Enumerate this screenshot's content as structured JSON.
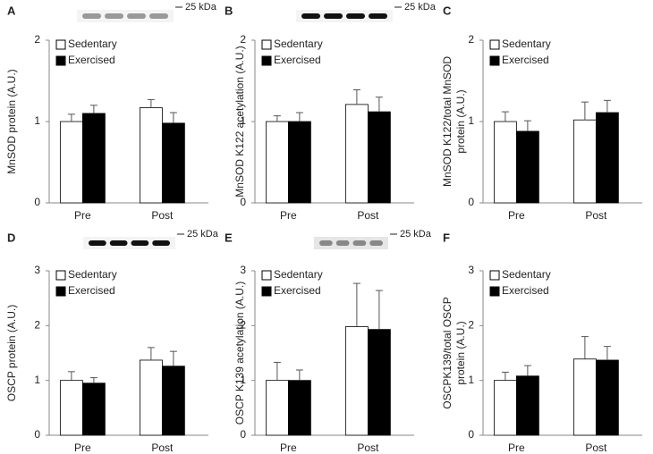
{
  "chart_data": [
    {
      "type": "bar",
      "panel": "A",
      "blot_label": "25 kDa",
      "y_label": "MnSOD protein (A.U.)",
      "categories": [
        "Pre",
        "Post"
      ],
      "ylim": [
        0,
        2
      ],
      "yticks": [
        0,
        1,
        2
      ],
      "series": [
        {
          "name": "Sedentary",
          "color": "#ffffff",
          "values": [
            1.0,
            1.17
          ],
          "errors": [
            0.09,
            0.1
          ]
        },
        {
          "name": "Exercised",
          "color": "#000000",
          "values": [
            1.1,
            0.98
          ],
          "errors": [
            0.1,
            0.13
          ]
        }
      ]
    },
    {
      "type": "bar",
      "panel": "B",
      "blot_label": "25 kDa",
      "y_label": "MnSOD K122 acetylation (A.U.)",
      "categories": [
        "Pre",
        "Post"
      ],
      "ylim": [
        0,
        2
      ],
      "yticks": [
        0,
        1,
        2
      ],
      "series": [
        {
          "name": "Sedentary",
          "color": "#ffffff",
          "values": [
            1.0,
            1.21
          ],
          "errors": [
            0.07,
            0.18
          ]
        },
        {
          "name": "Exercised",
          "color": "#000000",
          "values": [
            1.0,
            1.12
          ],
          "errors": [
            0.11,
            0.18
          ]
        }
      ]
    },
    {
      "type": "bar",
      "panel": "C",
      "y_label": [
        "MnSOD K122/total MnSOD",
        "protein (A.U.)"
      ],
      "categories": [
        "Pre",
        "Post"
      ],
      "ylim": [
        0,
        2
      ],
      "yticks": [
        0,
        1,
        2
      ],
      "series": [
        {
          "name": "Sedentary",
          "color": "#ffffff",
          "values": [
            1.0,
            1.02
          ],
          "errors": [
            0.12,
            0.22
          ]
        },
        {
          "name": "Exercised",
          "color": "#000000",
          "values": [
            0.88,
            1.11
          ],
          "errors": [
            0.13,
            0.15
          ]
        }
      ]
    },
    {
      "type": "bar",
      "panel": "D",
      "blot_label": "25 kDa",
      "y_label": "OSCP protein (A.U.)",
      "categories": [
        "Pre",
        "Post"
      ],
      "ylim": [
        0,
        3
      ],
      "yticks": [
        0,
        1,
        2,
        3
      ],
      "series": [
        {
          "name": "Sedentary",
          "color": "#ffffff",
          "values": [
            1.0,
            1.37
          ],
          "errors": [
            0.16,
            0.23
          ]
        },
        {
          "name": "Exercised",
          "color": "#000000",
          "values": [
            0.95,
            1.26
          ],
          "errors": [
            0.1,
            0.27
          ]
        }
      ]
    },
    {
      "type": "bar",
      "panel": "E",
      "blot_label": "25 kDa",
      "y_label": "OSCP K139 acetylation (A.U.)",
      "categories": [
        "Pre",
        "Post"
      ],
      "ylim": [
        0,
        3
      ],
      "yticks": [
        0,
        1,
        2,
        3
      ],
      "series": [
        {
          "name": "Sedentary",
          "color": "#ffffff",
          "values": [
            1.0,
            1.98
          ],
          "errors": [
            0.33,
            0.79
          ]
        },
        {
          "name": "Exercised",
          "color": "#000000",
          "values": [
            1.0,
            1.93
          ],
          "errors": [
            0.19,
            0.71
          ]
        }
      ]
    },
    {
      "type": "bar",
      "panel": "F",
      "y_label": [
        "OSCPK139/total OSCP",
        "protein (A.U.)"
      ],
      "categories": [
        "Pre",
        "Post"
      ],
      "ylim": [
        0,
        3
      ],
      "yticks": [
        0,
        1,
        2,
        3
      ],
      "series": [
        {
          "name": "Sedentary",
          "color": "#ffffff",
          "values": [
            1.0,
            1.39
          ],
          "errors": [
            0.15,
            0.41
          ]
        },
        {
          "name": "Exercised",
          "color": "#000000",
          "values": [
            1.08,
            1.37
          ],
          "errors": [
            0.19,
            0.25
          ]
        }
      ]
    }
  ]
}
